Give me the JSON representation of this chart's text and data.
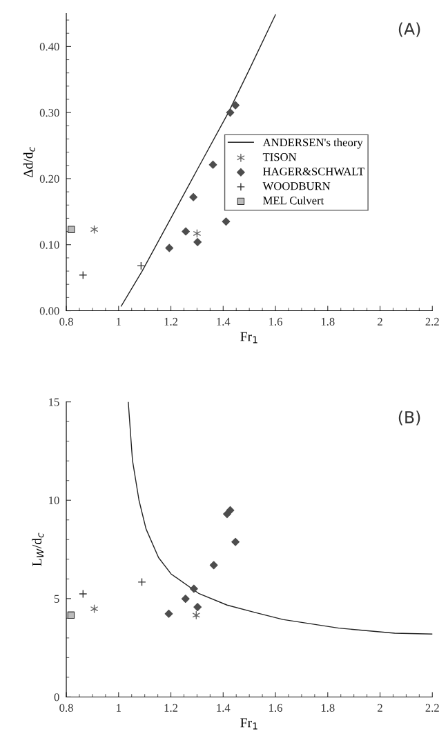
{
  "chart_data": [
    {
      "type": "scatter",
      "xlabel": "Fr$_{1}$",
      "ylabel": "Δd/d$_{c}$",
      "annotations": [
        "(A)"
      ],
      "xlim": [
        0.8,
        2.2
      ],
      "xticks": [
        0.8,
        1,
        1.2,
        1.4,
        1.6,
        1.8,
        2,
        2.2
      ],
      "ylim": [
        0,
        0.45
      ],
      "yticks": [
        {
          "value": 0,
          "label": "0.00"
        },
        {
          "value": 0.1,
          "label": "0.10"
        },
        {
          "value": 0.2,
          "label": "0.20"
        },
        {
          "value": 0.3,
          "label": "0.30"
        },
        {
          "value": 0.4,
          "label": "0.40"
        }
      ],
      "grid": false,
      "legend": "right",
      "series": [
        {
          "name": "ANDERSEN's theory",
          "type": "line",
          "color": "#222222",
          "marker": "none",
          "line_style": "solid",
          "x": [
            1.01,
            1.09,
            1.2,
            1.3,
            1.42,
            1.5,
            1.6
          ],
          "values": [
            0.007,
            0.06,
            0.14,
            0.213,
            0.3,
            0.365,
            0.448
          ]
        },
        {
          "name": "TISON",
          "color": "#666666",
          "x": [
            0.907,
            1.3
          ],
          "values": [
            0.123,
            0.117
          ]
        },
        {
          "name": "HAGER&SCHWALT",
          "color": "#4d4d4d",
          "marker": "diamond",
          "x": [
            1.427,
            1.447,
            1.361,
            1.286,
            1.411,
            1.257,
            1.302,
            1.194
          ],
          "values": [
            0.3,
            0.311,
            0.221,
            0.172,
            0.135,
            0.12,
            0.104,
            0.095
          ]
        },
        {
          "name": "WOODBURN",
          "color": "#333333",
          "marker": "cross",
          "x": [
            0.864,
            1.086
          ],
          "values": [
            0.054,
            0.068
          ]
        },
        {
          "name": "MEL Culvert",
          "color": "#bbbbbb",
          "marker": "square",
          "x": [
            0.819
          ],
          "values": [
            0.123
          ]
        }
      ]
    },
    {
      "type": "scatter",
      "xlabel": "Fr$_{1}$",
      "ylabel": "L$_{W}$/d$_{c}$",
      "annotations": [
        "(B)"
      ],
      "xlim": [
        0.8,
        2.2
      ],
      "xticks": [
        0.8,
        1,
        1.2,
        1.4,
        1.6,
        1.8,
        2,
        2.2
      ],
      "ylim": [
        0,
        15
      ],
      "yticks": [
        0,
        5,
        10,
        15
      ],
      "grid": false,
      "legend": false,
      "series": [
        {
          "type": "line",
          "color": "#222222",
          "marker": "none",
          "line_style": "solid",
          "x": [
            1.037,
            1.053,
            1.078,
            1.105,
            1.153,
            1.201,
            1.308,
            1.415,
            1.521,
            1.628,
            1.842,
            2.056,
            2.2
          ],
          "values": [
            15,
            12.04,
            10.0,
            8.54,
            7.08,
            6.25,
            5.25,
            4.67,
            4.3,
            3.94,
            3.5,
            3.24,
            3.2
          ]
        },
        {
          "color": "#666666",
          "x": [
            0.907,
            1.297
          ],
          "values": [
            4.48,
            4.16
          ]
        },
        {
          "color": "#4d4d4d",
          "marker": "diamond",
          "x": [
            1.192,
            1.256,
            1.288,
            1.302,
            1.364,
            1.415,
            1.427,
            1.447
          ],
          "values": [
            4.23,
            4.99,
            5.5,
            4.57,
            6.7,
            9.3,
            9.49,
            7.88
          ]
        },
        {
          "color": "#333333",
          "marker": "cross",
          "x": [
            0.864,
            1.089
          ],
          "values": [
            5.24,
            5.84
          ]
        },
        {
          "color": "#bbbbbb",
          "marker": "square",
          "x": [
            0.818
          ],
          "values": [
            4.16
          ]
        }
      ]
    }
  ]
}
